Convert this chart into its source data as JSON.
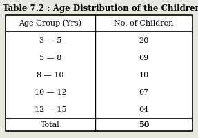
{
  "title": "Table 7.2 : Age Distribution of the Children",
  "col1_header": "Age Group (Yrs)",
  "col2_header": "No. of Children",
  "rows": [
    [
      "3 — 5",
      "20"
    ],
    [
      "5 — 8",
      "09"
    ],
    [
      "8 — 10",
      "10"
    ],
    [
      "10 — 12",
      "07"
    ],
    [
      "12 — 15",
      "04"
    ]
  ],
  "total_label": "Total",
  "total_value": "50",
  "bg_color": "#e8e8e0",
  "table_bg": "white",
  "title_fontsize": 8.5,
  "header_fontsize": 8.0,
  "data_fontsize": 8.0,
  "total_fontsize": 8.0,
  "col_split": 0.48
}
